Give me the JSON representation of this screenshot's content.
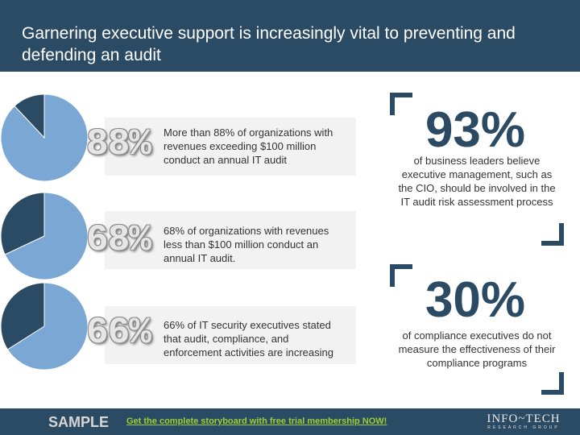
{
  "header": {
    "title": "Garnering executive support is increasingly vital to preventing and defending an audit"
  },
  "stats": [
    {
      "percent_label": "88%",
      "value": 88,
      "text": "More than 88% of organizations with revenues exceeding $100 million conduct an annual IT audit"
    },
    {
      "percent_label": "68%",
      "value": 68,
      "text": "68% of organizations with revenues less than $100 million conduct an annual IT audit."
    },
    {
      "percent_label": "66%",
      "value": 66,
      "text": "66% of IT security executives stated that audit, compliance, and enforcement activities are increasing"
    }
  ],
  "callouts": [
    {
      "percent_label": "93%",
      "text": "of business leaders believe executive management, such as the CIO, should be involved in the IT audit risk assessment process"
    },
    {
      "percent_label": "30%",
      "text": "of compliance executives do not measure the effectiveness of their compliance programs"
    }
  ],
  "footer": {
    "sample_label": "SAMPLE",
    "cta_link": "Get the complete storyboard with free trial membership NOW!",
    "logo_main": "INFO~TECH",
    "logo_sub": "RESEARCH GROUP"
  },
  "colors": {
    "dark": "#2b4a63",
    "light": "#7ba7d4",
    "cta": "#9ccf3a"
  }
}
